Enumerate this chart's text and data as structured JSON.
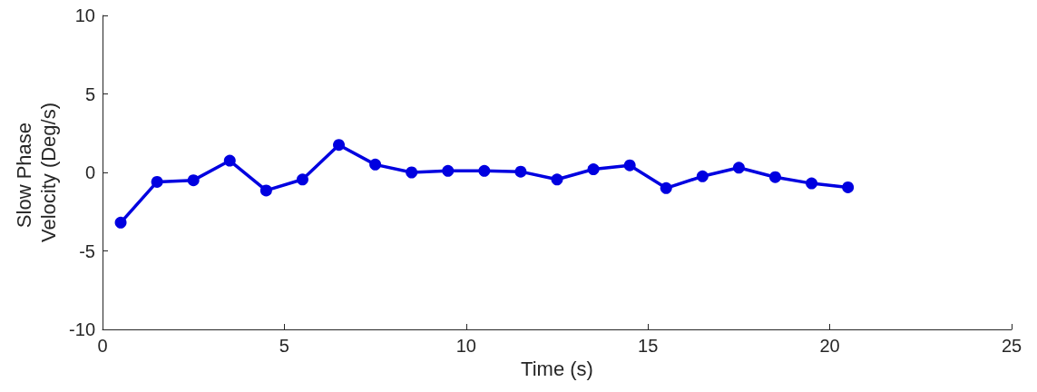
{
  "chart_data": {
    "type": "line",
    "xlabel": "Time (s)",
    "ylabel": "Slow Phase Velocity (Deg/s)",
    "x": [
      0.5,
      1.5,
      2.5,
      3.5,
      4.5,
      5.5,
      6.5,
      7.5,
      8.5,
      9.5,
      10.5,
      11.5,
      12.5,
      13.5,
      14.5,
      15.5,
      16.5,
      17.5,
      18.5,
      19.5,
      20.5
    ],
    "series": [
      {
        "color": "#0000e0",
        "values": [
          -3.2,
          -0.6,
          -0.5,
          0.75,
          -1.15,
          -0.45,
          1.75,
          0.5,
          0,
          0.1,
          0.1,
          0.05,
          -0.45,
          0.2,
          0.45,
          -1,
          -0.25,
          0.3,
          -0.3,
          -0.7,
          -0.95
        ]
      }
    ],
    "xlim": [
      0,
      25
    ],
    "xticks": [
      0,
      5,
      10,
      15,
      20,
      25
    ],
    "ylim": [
      -10,
      10
    ],
    "yticks": [
      -10,
      -5,
      0,
      5,
      10
    ],
    "grid": false,
    "marker": "circle",
    "line_style": "solid"
  }
}
